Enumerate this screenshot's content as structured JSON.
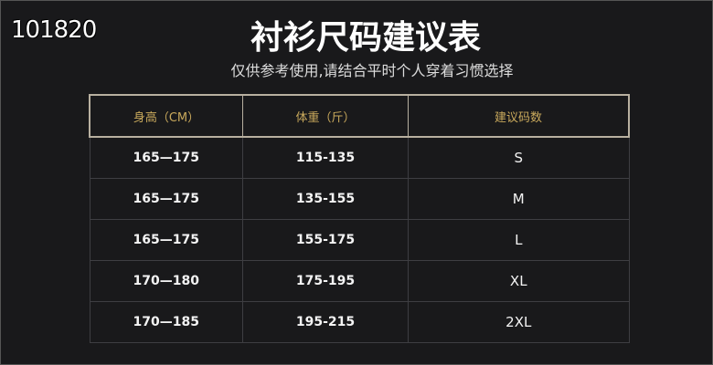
{
  "overlay_text": "101820",
  "title": "衬衫尺码建议表",
  "subtitle": "仅供参考使用,请结合平时个人穿着习惯选择",
  "colors": {
    "background": "#19191b",
    "header_text": "#c9a95c",
    "header_border": "#b8b0a0"
  },
  "table": {
    "headers": [
      "身高（CM）",
      "体重（斤）",
      "建议码数"
    ],
    "rows": [
      [
        "165—175",
        "115-135",
        "S"
      ],
      [
        "165—175",
        "135-155",
        "M"
      ],
      [
        "165—175",
        "155-175",
        "L"
      ],
      [
        "170—180",
        "175-195",
        "XL"
      ],
      [
        "170—185",
        "195-215",
        "2XL"
      ]
    ]
  }
}
